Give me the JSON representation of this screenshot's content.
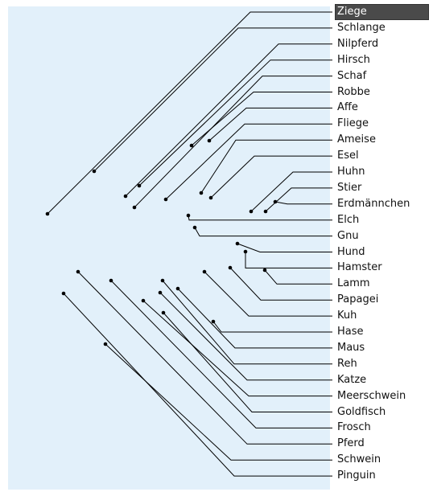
{
  "labels": [
    "Ziege",
    "Schlange",
    "Nilpferd",
    "Hirsch",
    "Schaf",
    "Robbe",
    "Affe",
    "Fliege",
    "Ameise",
    "Esel",
    "Huhn",
    "Stier",
    "Erdmännchen",
    "Elch",
    "Gnu",
    "Hund",
    "Hamster",
    "Lamm",
    "Papagei",
    "Kuh",
    "Hase",
    "Maus",
    "Reh",
    "Katze",
    "Meerschwein",
    "Goldfisch",
    "Frosch",
    "Pferd",
    "Schwein",
    "Pinguin"
  ],
  "selected_index": 0,
  "colors": {
    "panel": "#e2f0fa",
    "line": "#000000",
    "selected_bg": "#4a4a4a"
  }
}
